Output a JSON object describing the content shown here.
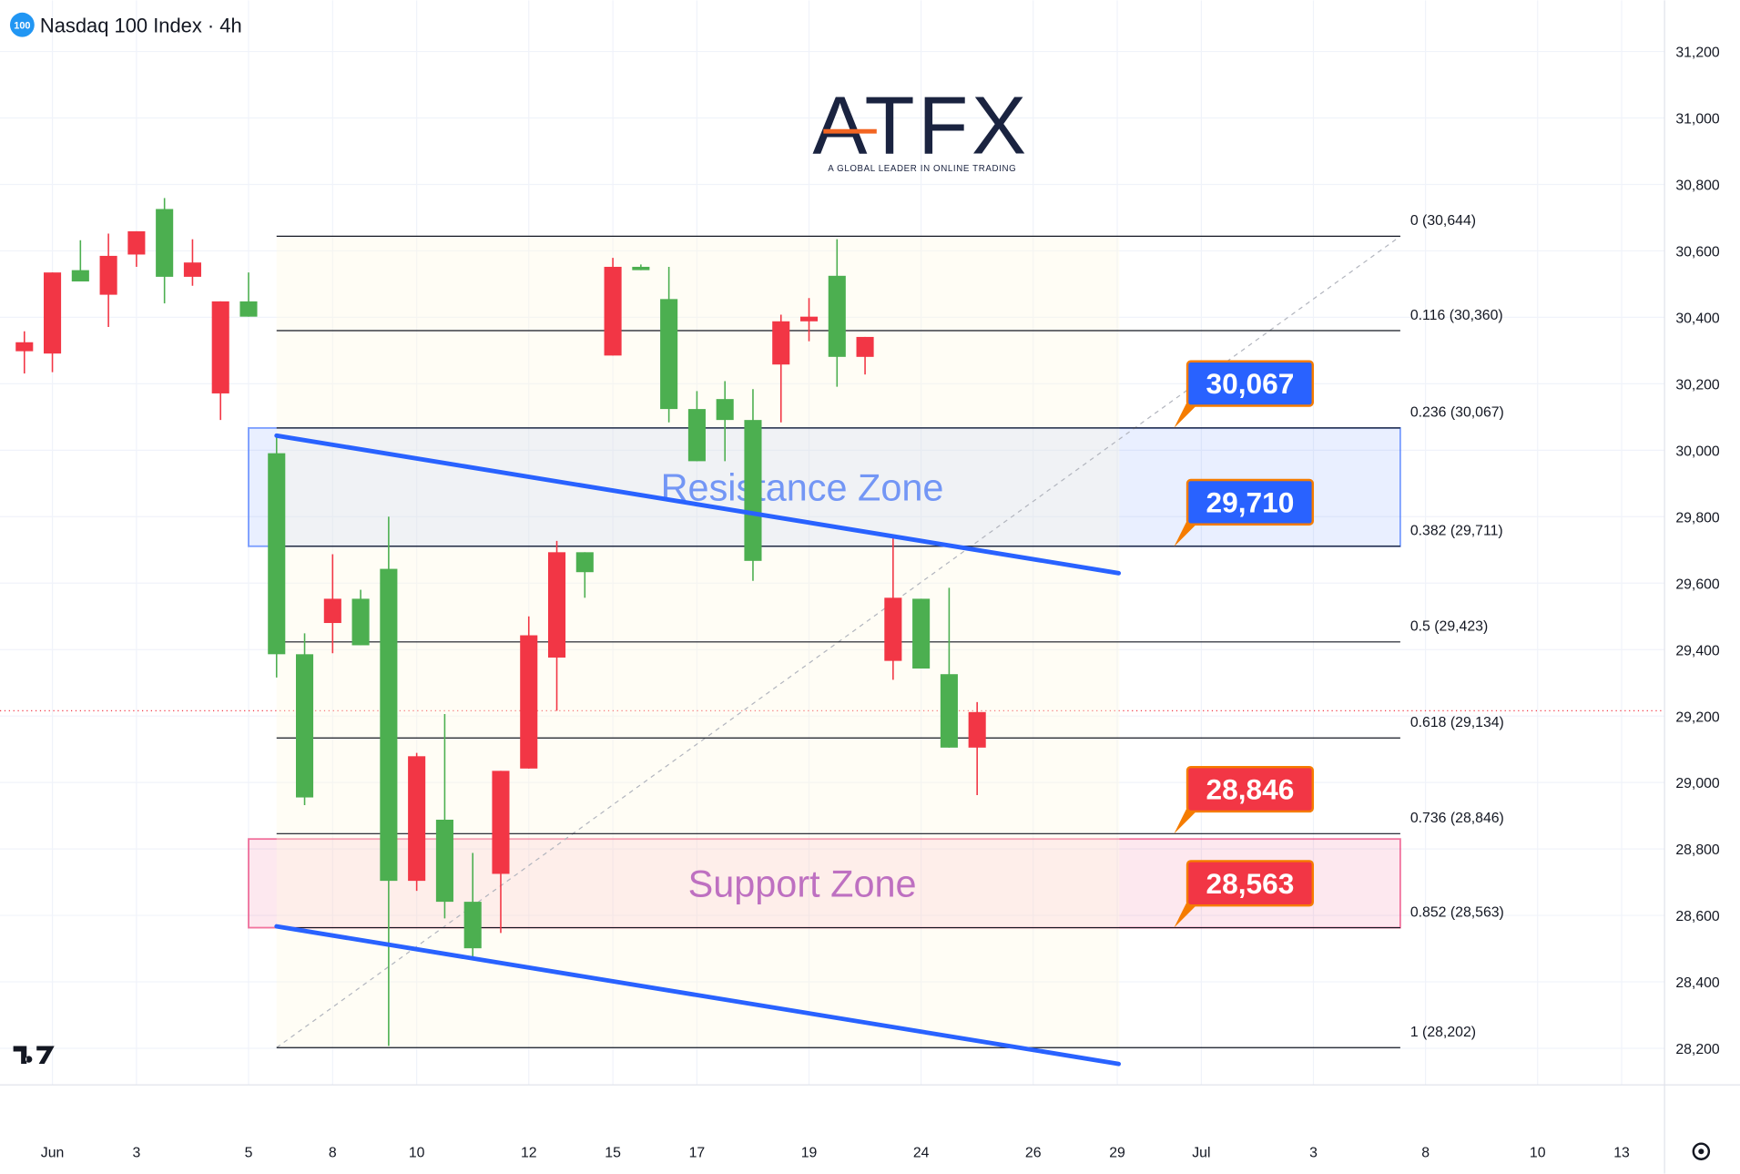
{
  "chart_data": {
    "type": "candlestick",
    "title": "Nasdaq 100 Index · 4h",
    "symbol_badge": "100",
    "logo": {
      "name": "ATFX",
      "tagline": "A GLOBAL LEADER IN ONLINE TRADING"
    },
    "up_color": "#4caf50",
    "down_color": "#f23645",
    "xlim": [
      -0.87,
      58.53
    ],
    "ylim": [
      28090,
      31354
    ],
    "xticks": [
      {
        "value": 1,
        "label": "Jun"
      },
      {
        "value": 4,
        "label": "3"
      },
      {
        "value": 8,
        "label": "5"
      },
      {
        "value": 11,
        "label": "8"
      },
      {
        "value": 14,
        "label": "10"
      },
      {
        "value": 18,
        "label": "12"
      },
      {
        "value": 21,
        "label": "15"
      },
      {
        "value": 24,
        "label": "17"
      },
      {
        "value": 28,
        "label": "19"
      },
      {
        "value": 32,
        "label": "24"
      },
      {
        "value": 36,
        "label": "26"
      },
      {
        "value": 39,
        "label": "29"
      },
      {
        "value": 42,
        "label": "Jul"
      },
      {
        "value": 46,
        "label": "3"
      },
      {
        "value": 50,
        "label": "8"
      },
      {
        "value": 54,
        "label": "10"
      },
      {
        "value": 57,
        "label": "13"
      }
    ],
    "yticks": [
      {
        "value": 28200,
        "label": "28,200"
      },
      {
        "value": 28400,
        "label": "28,400"
      },
      {
        "value": 28600,
        "label": "28,600"
      },
      {
        "value": 28800,
        "label": "28,800"
      },
      {
        "value": 29000,
        "label": "29,000"
      },
      {
        "value": 29200,
        "label": "29,200"
      },
      {
        "value": 29400,
        "label": "29,400"
      },
      {
        "value": 29600,
        "label": "29,600"
      },
      {
        "value": 29800,
        "label": "29,800"
      },
      {
        "value": 30000,
        "label": "30,000"
      },
      {
        "value": 30200,
        "label": "30,200"
      },
      {
        "value": 30400,
        "label": "30,400"
      },
      {
        "value": 30600,
        "label": "30,600"
      },
      {
        "value": 30800,
        "label": "30,800"
      },
      {
        "value": 31000,
        "label": "31,000"
      },
      {
        "value": 31200,
        "label": "31,200"
      }
    ],
    "grid": true,
    "open": [
      30325,
      30535,
      30508,
      30585,
      30659,
      30522,
      30565,
      30448,
      30402,
      29386,
      28955,
      29553,
      29413,
      28704,
      29079,
      28641,
      28501,
      29035,
      29443,
      29693,
      29633,
      30552,
      30542,
      30124,
      29967,
      30091,
      29667,
      30388,
      30402,
      30281,
      30341,
      29556,
      29343,
      29105,
      29212
    ],
    "high": [
      30358,
      30535,
      30632,
      30652,
      30659,
      30759,
      30635,
      30448,
      30535,
      30044,
      29449,
      29687,
      29580,
      29800,
      29089,
      29206,
      28788,
      29035,
      29500,
      29727,
      29693,
      30579,
      30559,
      30552,
      30178,
      30208,
      30184,
      30408,
      30458,
      30635,
      30341,
      29740,
      29553,
      29586,
      29242
    ],
    "low": [
      30231,
      30235,
      30508,
      30371,
      30552,
      30442,
      30495,
      30091,
      30402,
      29316,
      28932,
      29389,
      29413,
      28207,
      28674,
      28591,
      28474,
      28547,
      29042,
      29216,
      29556,
      30285,
      30542,
      30084,
      29967,
      29967,
      29607,
      30084,
      30328,
      30191,
      30228,
      29309,
      29343,
      29105,
      28962
    ],
    "close": [
      30298,
      30291,
      30542,
      30468,
      30589,
      30726,
      30522,
      30171,
      30448,
      29991,
      29386,
      29480,
      29553,
      29643,
      28704,
      28888,
      28641,
      28725,
      29042,
      29376,
      29693,
      30285,
      30552,
      30455,
      30124,
      30154,
      30091,
      30258,
      30388,
      30525,
      30281,
      29366,
      29553,
      29326,
      29105
    ],
    "last_price": 29216,
    "fib_x": [
      9,
      49.1
    ],
    "fib_levels": [
      {
        "value": 30644,
        "label": "0 (30,644)"
      },
      {
        "value": 30360,
        "label": "0.116 (30,360)"
      },
      {
        "value": 30067,
        "label": "0.236 (30,067)"
      },
      {
        "value": 29711,
        "label": "0.382 (29,711)"
      },
      {
        "value": 29423,
        "label": "0.5 (29,423)"
      },
      {
        "value": 29134,
        "label": "0.618 (29,134)"
      },
      {
        "value": 28846,
        "label": "0.736 (28,846)"
      },
      {
        "value": 28563,
        "label": "0.852 (28,563)"
      },
      {
        "value": 28202,
        "label": "1 (28,202)"
      }
    ],
    "zones": [
      {
        "label": "Resistance Zone",
        "x": [
          8,
          49.1
        ],
        "range": [
          29711,
          30067
        ],
        "color": "#2962ff",
        "text_color": "#2962ff"
      },
      {
        "label": "Support Zone",
        "x": [
          8,
          49.1
        ],
        "range": [
          28563,
          28830
        ],
        "color": "#e91e63",
        "text_color": "#9c27b0"
      }
    ],
    "trend_lines": [
      {
        "x": [
          9,
          39.05
        ],
        "y": [
          30044,
          29630
        ]
      },
      {
        "x": [
          9,
          39.05
        ],
        "y": [
          28567,
          28153
        ]
      }
    ],
    "trend_color": "#2962ff",
    "price_badges": [
      {
        "value": 30067,
        "label": "30,067",
        "color": "#2962ff"
      },
      {
        "value": 29710,
        "label": "29,710",
        "color": "#2962ff"
      },
      {
        "value": 28846,
        "label": "28,846",
        "color": "#f23645"
      },
      {
        "value": 28563,
        "label": "28,563",
        "color": "#f23645"
      }
    ]
  }
}
